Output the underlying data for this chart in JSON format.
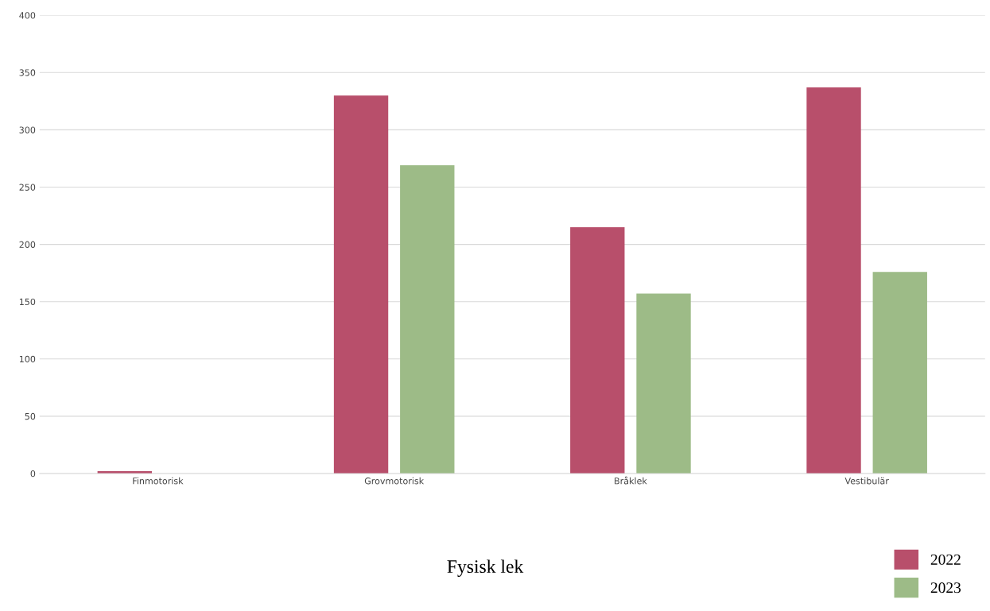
{
  "chart_data": {
    "type": "bar",
    "xlabel": "Fysisk lek",
    "categories": [
      "Finmotorisk",
      "Grovmotorisk",
      "Bråklek",
      "Vestibulär"
    ],
    "series": [
      {
        "name": "2022",
        "color": "#b84f6b",
        "values": [
          2,
          330,
          215,
          337
        ]
      },
      {
        "name": "2023",
        "color": "#9dbb87",
        "values": [
          0,
          269,
          157,
          176
        ]
      }
    ],
    "ylim": [
      0,
      400
    ],
    "yticks": [
      0,
      50,
      100,
      150,
      200,
      250,
      300,
      350,
      400
    ],
    "grid": "y",
    "legend": "bottom right"
  }
}
